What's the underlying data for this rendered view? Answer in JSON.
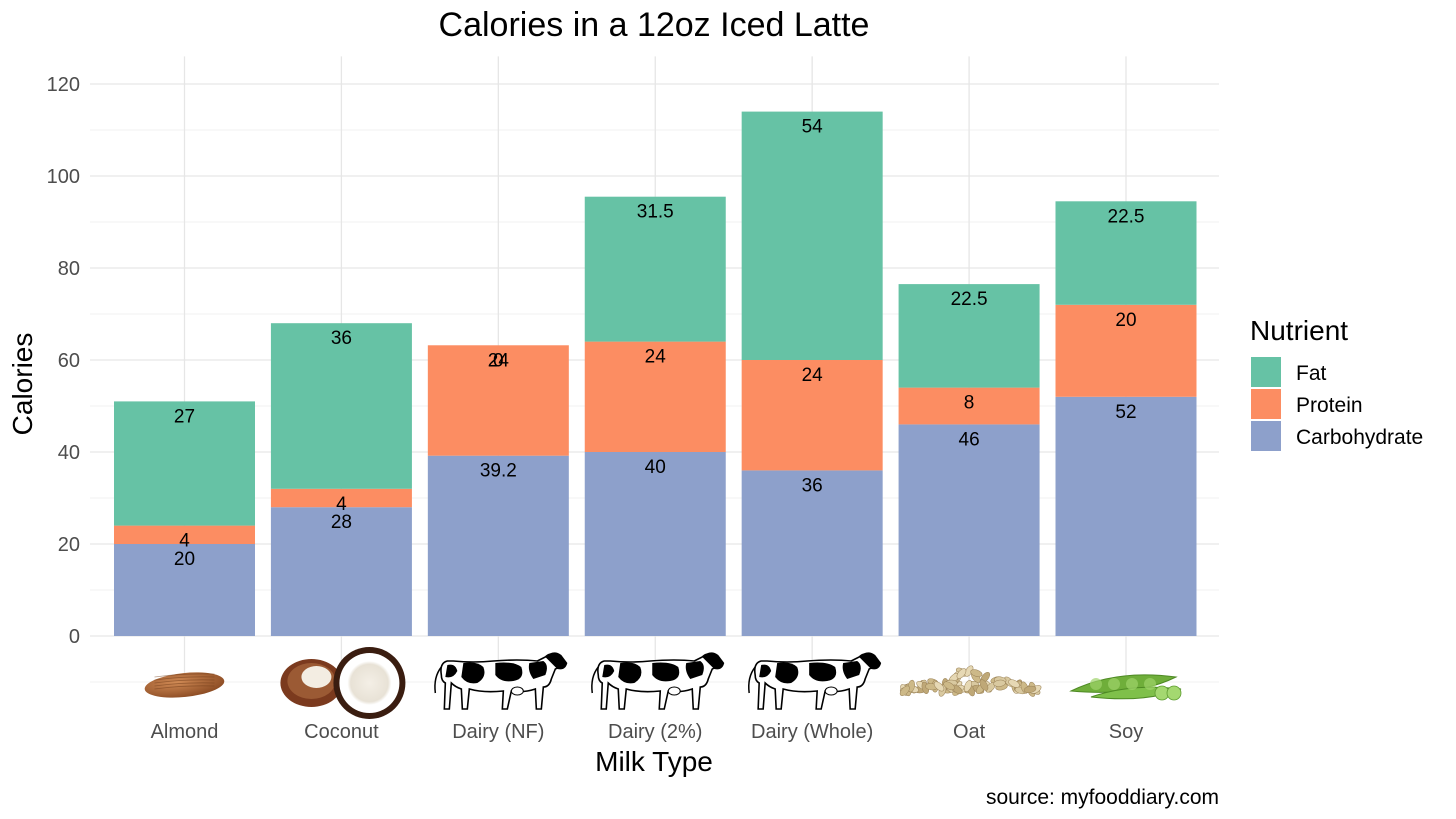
{
  "chart_data": {
    "type": "bar",
    "stacked": true,
    "title": "Calories in a 12oz Iced Latte",
    "xlabel": "Milk Type",
    "ylabel": "Calories",
    "categories": [
      "Almond",
      "Coconut",
      "Dairy (NF)",
      "Dairy (2%)",
      "Dairy (Whole)",
      "Oat",
      "Soy"
    ],
    "category_icons": [
      "almond-icon",
      "coconut-icon",
      "cow-icon",
      "cow-icon",
      "cow-icon",
      "oat-icon",
      "soybean-icon"
    ],
    "series": [
      {
        "name": "Carbohydrate",
        "color": "#8DA0CB",
        "values": [
          20,
          28,
          39.2,
          40,
          36,
          46,
          52
        ],
        "labels": [
          "20",
          "28",
          "39.2",
          "40",
          "36",
          "46",
          "52"
        ]
      },
      {
        "name": "Protein",
        "color": "#FC8D62",
        "values": [
          4,
          4,
          24,
          24,
          24,
          8,
          20
        ],
        "labels": [
          "4",
          "4",
          "24",
          "24",
          "24",
          "8",
          "20"
        ]
      },
      {
        "name": "Fat",
        "color": "#66C2A5",
        "values": [
          27,
          36,
          0,
          31.5,
          54,
          22.5,
          22.5
        ],
        "labels": [
          "27",
          "36",
          "0",
          "31.5",
          "54",
          "22.5",
          "22.5"
        ]
      }
    ],
    "ylim": [
      -10,
      120
    ],
    "yticks": [
      0,
      20,
      40,
      60,
      80,
      100,
      120
    ],
    "ytick_labels": [
      "0",
      "20",
      "40",
      "60",
      "80",
      "100",
      "120"
    ],
    "grid": true,
    "legend": {
      "title": "Nutrient",
      "position": "right",
      "entries": [
        {
          "name": "Fat",
          "color": "#66C2A5"
        },
        {
          "name": "Protein",
          "color": "#FC8D62"
        },
        {
          "name": "Carbohydrate",
          "color": "#8DA0CB"
        }
      ]
    },
    "caption": "source: myfooddiary.com"
  }
}
